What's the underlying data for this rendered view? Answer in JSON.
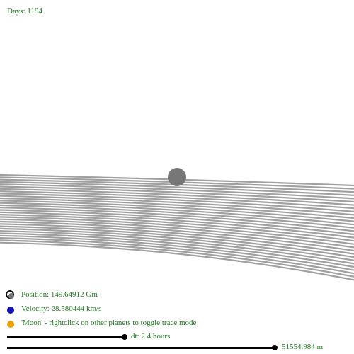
{
  "hud": {
    "days": "Days: 1194"
  },
  "legend": {
    "position": "Position: 149.64912 Gm",
    "velocity": "Velocity: 28.580444 km/s",
    "moon_hint": "'Moon' - rightclick on other planets to toggle trace mode"
  },
  "controls": {
    "dt_label": "dt: 2.4 hours",
    "scale_label": "51554.984 m"
  },
  "colors": {
    "trail": "#a0a0a0",
    "planet": "#777777",
    "velocity_dot": "#1414b4",
    "moon_dot": "#f0a000",
    "text": "#1f7a1f"
  }
}
